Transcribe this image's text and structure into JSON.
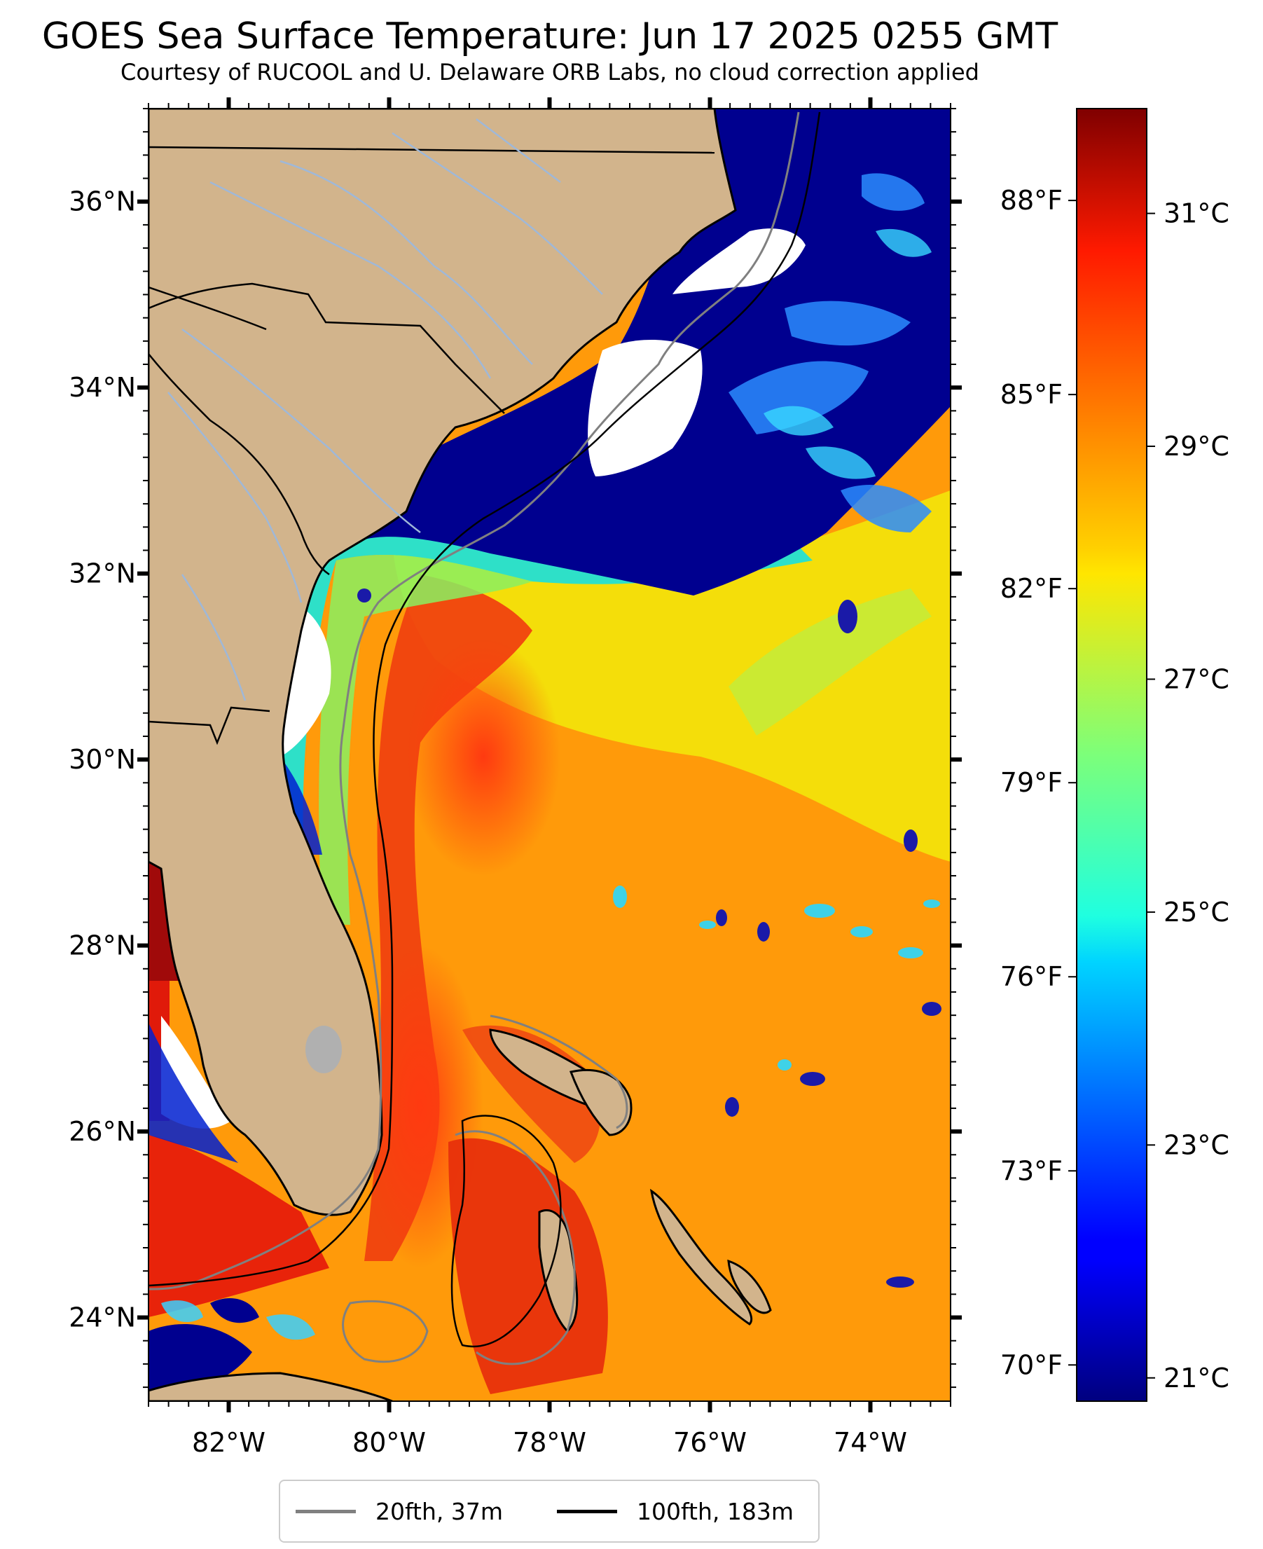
{
  "title": "GOES Sea Surface Temperature: Jun 17 2025 0255 GMT",
  "subtitle": "Courtesy of RUCOOL and U. Delaware ORB Labs, no cloud correction applied",
  "map": {
    "projection": "PlateCarree",
    "lon_range": [
      -83,
      -73
    ],
    "lat_range": [
      23.1,
      37
    ],
    "lon_ticks": [
      {
        "value": -82,
        "label": "82°W"
      },
      {
        "value": -80,
        "label": "80°W"
      },
      {
        "value": -78,
        "label": "78°W"
      },
      {
        "value": -76,
        "label": "76°W"
      },
      {
        "value": -74,
        "label": "74°W"
      }
    ],
    "lat_ticks": [
      {
        "value": 36,
        "label": "36°N"
      },
      {
        "value": 34,
        "label": "34°N"
      },
      {
        "value": 32,
        "label": "32°N"
      },
      {
        "value": 30,
        "label": "30°N"
      },
      {
        "value": 28,
        "label": "28°N"
      },
      {
        "value": 26,
        "label": "26°N"
      },
      {
        "value": 24,
        "label": "24°N"
      }
    ],
    "colors": {
      "land": "#d2b48c",
      "cloud": "#ffffff",
      "isobath_20fth": "#808080",
      "isobath_100fth": "#000000",
      "rivers": "#9fb8d8",
      "lakes": "#b0b0b0"
    }
  },
  "colorbar": {
    "colormap": "jet",
    "range_c": [
      20.8,
      31.9
    ],
    "celsius_ticks": [
      {
        "value": 31,
        "label": "31°C"
      },
      {
        "value": 29,
        "label": "29°C"
      },
      {
        "value": 27,
        "label": "27°C"
      },
      {
        "value": 25,
        "label": "25°C"
      },
      {
        "value": 23,
        "label": "23°C"
      },
      {
        "value": 21,
        "label": "21°C"
      }
    ],
    "fahrenheit_ticks": [
      {
        "value": 88,
        "label": "88°F"
      },
      {
        "value": 85,
        "label": "85°F"
      },
      {
        "value": 82,
        "label": "82°F"
      },
      {
        "value": 79,
        "label": "79°F"
      },
      {
        "value": 76,
        "label": "76°F"
      },
      {
        "value": 73,
        "label": "73°F"
      },
      {
        "value": 70,
        "label": "70°F"
      }
    ]
  },
  "legend": {
    "items": [
      {
        "label": "20fth, 37m",
        "color": "#808080"
      },
      {
        "label": "100fth, 183m",
        "color": "#000000"
      }
    ]
  }
}
